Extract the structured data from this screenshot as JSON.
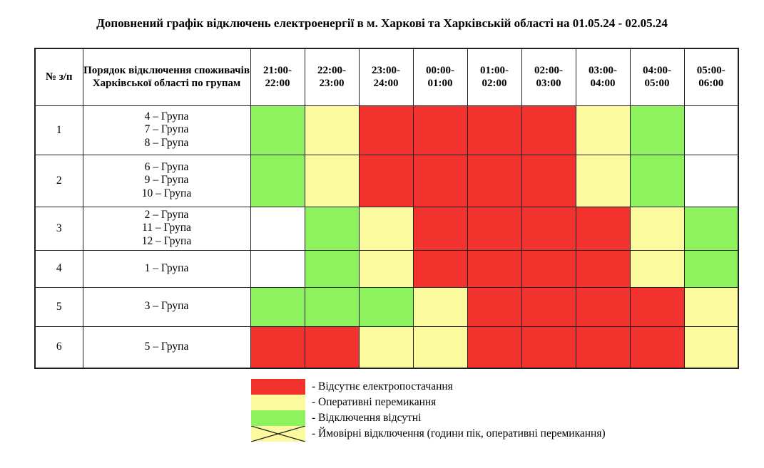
{
  "title": "Доповнений графік відключень електроенергії в м. Харкові та Харківській області на 01.05.24 - 02.05.24",
  "chart_data": {
    "type": "table",
    "title": "Доповнений графік відключень електроенергії в м. Харкові та Харківській області на 01.05.24 - 02.05.24",
    "row_header_num": "№ з/п",
    "row_header_groups": "Порядок відключення споживачів Харківської області по групам",
    "columns": [
      "21:00-22:00",
      "22:00-23:00",
      "23:00-24:00",
      "00:00-01:00",
      "01:00-02:00",
      "02:00-03:00",
      "03:00-04:00",
      "04:00-05:00",
      "05:00-06:00"
    ],
    "rows": [
      {
        "num": "1",
        "groups": [
          "4 – Група",
          "7 – Група",
          "8 – Група"
        ],
        "cells": [
          "green",
          "yellow",
          "red",
          "red",
          "red",
          "red",
          "yellow",
          "green",
          "white"
        ]
      },
      {
        "num": "2",
        "groups": [
          "6 – Група",
          "9 – Група",
          "10 – Група"
        ],
        "cells": [
          "green",
          "yellow",
          "red",
          "red",
          "red",
          "red",
          "yellow",
          "green",
          "white"
        ]
      },
      {
        "num": "3",
        "groups": [
          "2 – Група",
          "11 – Група",
          "12 – Група"
        ],
        "cells": [
          "white",
          "green",
          "yellow",
          "red",
          "red",
          "red",
          "red",
          "yellow",
          "green"
        ]
      },
      {
        "num": "4",
        "groups": [
          "1 – Група"
        ],
        "cells": [
          "white",
          "green",
          "yellow",
          "red",
          "red",
          "red",
          "red",
          "yellow",
          "green"
        ]
      },
      {
        "num": "5",
        "groups": [
          "3 – Група"
        ],
        "cells": [
          "green",
          "green",
          "green",
          "yellow",
          "red",
          "red",
          "red",
          "red",
          "yellow"
        ]
      },
      {
        "num": "6",
        "groups": [
          "5 – Група"
        ],
        "cells": [
          "red",
          "red",
          "yellow",
          "yellow",
          "red",
          "red",
          "red",
          "red",
          "yellow"
        ]
      }
    ]
  },
  "legend": {
    "items": [
      {
        "color": "red",
        "crossed": false,
        "label": "- Відсутнє електропостачання"
      },
      {
        "color": "yellow",
        "crossed": false,
        "label": "- Оперативні перемикання"
      },
      {
        "color": "green",
        "crossed": false,
        "label": "- Відключення відсутні"
      },
      {
        "color": "yellow",
        "crossed": true,
        "label": "- Ймовірні відключення (години пік, оперативні перемикання)"
      }
    ]
  },
  "colors": {
    "red": "#f2322d",
    "yellow": "#fbfa9f",
    "green": "#8ef25e",
    "white": "#ffffff",
    "cross_line": "#222222"
  }
}
